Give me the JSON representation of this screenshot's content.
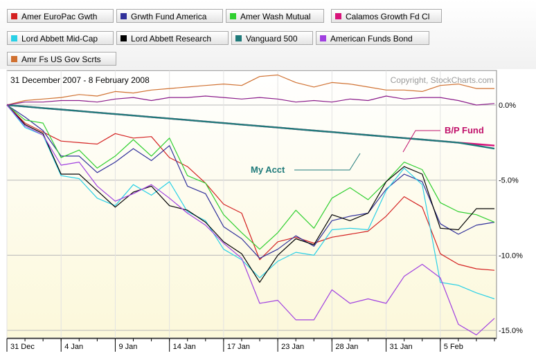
{
  "chart_data": {
    "type": "line",
    "date_range": "31 December 2007 - 8 February 2008",
    "copyright": "Copyright, StockCharts.com",
    "x": [
      "2007-12-31",
      "2008-01-02",
      "2008-01-03",
      "2008-01-04",
      "2008-01-07",
      "2008-01-08",
      "2008-01-09",
      "2008-01-10",
      "2008-01-11",
      "2008-01-14",
      "2008-01-15",
      "2008-01-16",
      "2008-01-17",
      "2008-01-18",
      "2008-01-22",
      "2008-01-23",
      "2008-01-24",
      "2008-01-25",
      "2008-01-28",
      "2008-01-29",
      "2008-01-30",
      "2008-01-31",
      "2008-02-01",
      "2008-02-04",
      "2008-02-05",
      "2008-02-06",
      "2008-02-07",
      "2008-02-08"
    ],
    "x_tick_labels": [
      "31 Dec",
      "4 Jan",
      "9 Jan",
      "14 Jan",
      "17 Jan",
      "23 Jan",
      "28 Jan",
      "31 Jan",
      "5 Feb"
    ],
    "x_tick_dates": [
      "2007-12-31",
      "2008-01-04",
      "2008-01-09",
      "2008-01-14",
      "2008-01-17",
      "2008-01-23",
      "2008-01-28",
      "2008-01-31",
      "2008-02-05"
    ],
    "y_tick_labels": [
      "0.0%",
      "-5.0%",
      "-10.0%",
      "-15.0%"
    ],
    "y_tick_values": [
      0,
      -5,
      -10,
      -15
    ],
    "ylim": [
      -15.5,
      2.3
    ],
    "series": [
      {
        "name": "Amer EuroPac Gwth",
        "color": "#d42020",
        "values": [
          0,
          -1.2,
          -1.8,
          -2.4,
          -2.5,
          -2.6,
          -1.9,
          -2.2,
          -2.1,
          -3.5,
          -4.1,
          -5.2,
          -6.6,
          -7.2,
          -10.3,
          -9.1,
          -8.8,
          -9.2,
          -8.8,
          -8.6,
          -8.4,
          -7.4,
          -6.1,
          -6.8,
          -9.9,
          -10.6,
          -10.9,
          -11.0
        ]
      },
      {
        "name": "Grwth Fund America",
        "color": "#30309a",
        "values": [
          0,
          -0.8,
          -1.7,
          -3.4,
          -3.4,
          -4.5,
          -3.8,
          -2.9,
          -3.7,
          -2.7,
          -5.4,
          -5.9,
          -8.1,
          -8.9,
          -10.2,
          -9.6,
          -8.7,
          -9.4,
          -7.7,
          -7.4,
          -7.2,
          -5.6,
          -4.6,
          -5.1,
          -7.9,
          -8.6,
          -8.0,
          -7.8
        ]
      },
      {
        "name": "Amer Wash Mutual",
        "color": "#2fcf2f",
        "values": [
          0,
          -1.0,
          -1.2,
          -3.5,
          -3.0,
          -4.2,
          -3.4,
          -2.3,
          -3.4,
          -2.2,
          -4.7,
          -5.2,
          -7.3,
          -8.5,
          -9.6,
          -8.5,
          -7.0,
          -8.2,
          -6.2,
          -5.5,
          -6.3,
          -5.1,
          -3.8,
          -4.3,
          -6.5,
          -7.1,
          -7.3,
          -7.8
        ]
      },
      {
        "name": "Calamos Growth Fd Cl",
        "color": "#d8127a",
        "values": [
          0,
          -0.1,
          -0.2,
          -0.3,
          -0.4,
          -0.5,
          -0.6,
          -0.7,
          -0.8,
          -0.9,
          -1.0,
          -1.1,
          -1.2,
          -1.3,
          -1.4,
          -1.5,
          -1.6,
          -1.7,
          -1.8,
          -1.9,
          -2.0,
          -2.1,
          -2.2,
          -2.3,
          -2.4,
          -2.5,
          -2.6,
          -2.7
        ]
      },
      {
        "name": "Lord Abbett Mid-Cap",
        "color": "#29d0e6",
        "values": [
          0,
          -1.5,
          -2.0,
          -4.7,
          -4.9,
          -6.2,
          -6.7,
          -5.3,
          -6.0,
          -5.1,
          -7.1,
          -7.7,
          -9.6,
          -10.3,
          -11.5,
          -10.4,
          -9.8,
          -10.0,
          -8.3,
          -8.2,
          -8.3,
          -5.7,
          -4.2,
          -5.3,
          -11.8,
          -12.0,
          -12.5,
          -12.9
        ]
      },
      {
        "name": "Lord Abbett Research",
        "color": "#000000",
        "values": [
          0,
          -1.3,
          -1.9,
          -4.6,
          -4.6,
          -5.7,
          -6.8,
          -5.8,
          -5.4,
          -6.7,
          -7.0,
          -7.8,
          -9.1,
          -9.9,
          -11.8,
          -10.0,
          -8.9,
          -9.3,
          -7.3,
          -7.7,
          -7.2,
          -5.1,
          -4.1,
          -4.6,
          -8.2,
          -8.3,
          -6.9,
          -6.9
        ]
      },
      {
        "name": "Vanguard 500",
        "color": "#1f7a7a",
        "values": [
          0,
          -0.1,
          -0.2,
          -0.3,
          -0.4,
          -0.5,
          -0.6,
          -0.7,
          -0.8,
          -0.9,
          -1.0,
          -1.1,
          -1.2,
          -1.3,
          -1.4,
          -1.5,
          -1.6,
          -1.7,
          -1.8,
          -1.9,
          -2.0,
          -2.1,
          -2.2,
          -2.3,
          -2.4,
          -2.5,
          -2.7,
          -2.9
        ]
      },
      {
        "name": "American Funds Bond",
        "color": "#a040e0",
        "values": [
          0,
          -1.4,
          -2.0,
          -4.0,
          -3.8,
          -5.4,
          -6.4,
          -5.9,
          -5.3,
          -6.2,
          -7.2,
          -8.0,
          -9.2,
          -10.2,
          -13.2,
          -13.0,
          -14.3,
          -14.3,
          -12.3,
          -13.2,
          -12.9,
          -13.2,
          -11.4,
          -10.6,
          -11.5,
          -14.6,
          -15.3,
          -14.2
        ]
      },
      {
        "name": "Amr Fs US Gov Scrts",
        "color": "#d07030",
        "values": [
          0,
          0.3,
          0.4,
          0.5,
          0.7,
          0.6,
          0.9,
          0.8,
          1.0,
          1.1,
          1.2,
          1.3,
          1.4,
          1.3,
          1.9,
          2.0,
          1.5,
          1.2,
          1.5,
          1.4,
          1.2,
          1.0,
          1.0,
          0.9,
          1.3,
          1.4,
          1.1,
          1.1
        ]
      },
      {
        "name": "",
        "color": "#8a1a8a",
        "values": [
          0,
          0.2,
          0.2,
          0.3,
          0.3,
          0.2,
          0.4,
          0.5,
          0.3,
          0.5,
          0.5,
          0.6,
          0.5,
          0.4,
          0.5,
          0.4,
          0.2,
          0.3,
          0.2,
          0.4,
          0.3,
          0.6,
          0.4,
          0.5,
          0.5,
          0.3,
          0.0,
          0.1
        ]
      }
    ],
    "annotations": [
      {
        "text": "B/P Fund",
        "color": "#c0106a"
      },
      {
        "text": "My Acct",
        "color": "#1f7a7a"
      }
    ]
  },
  "legend": [
    {
      "label": "Amer EuroPac Gwth",
      "color": "#d42020"
    },
    {
      "label": "Grwth Fund America",
      "color": "#30309a"
    },
    {
      "label": "Amer Wash Mutual",
      "color": "#2fcf2f"
    },
    {
      "label": "Calamos Growth Fd Cl",
      "color": "#d8127a"
    },
    {
      "label": "Lord Abbett Mid-Cap",
      "color": "#29d0e6"
    },
    {
      "label": "Lord Abbett Research",
      "color": "#000000"
    },
    {
      "label": "Vanguard 500",
      "color": "#1f7a7a"
    },
    {
      "label": "American Funds Bond",
      "color": "#a040e0"
    },
    {
      "label": "Amr Fs US Gov Scrts",
      "color": "#d07030"
    }
  ]
}
